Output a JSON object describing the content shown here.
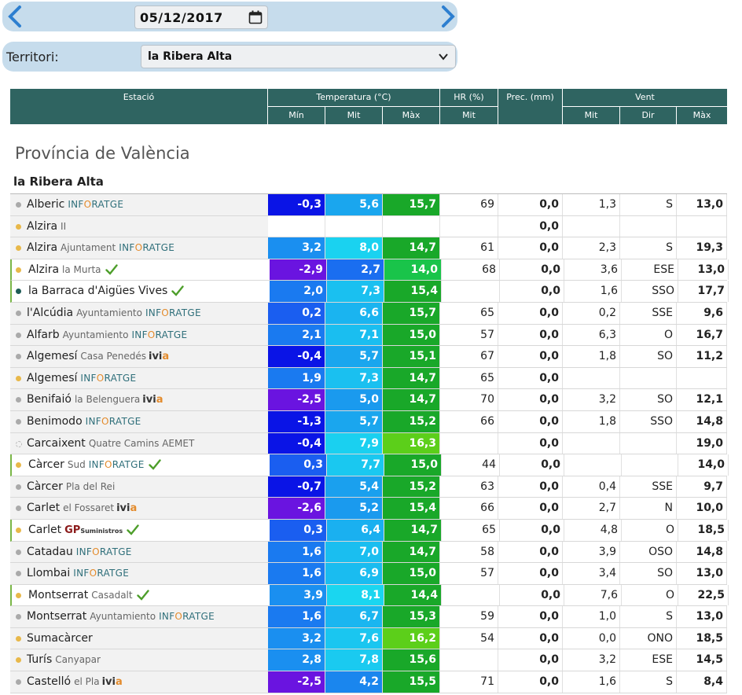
{
  "date": "05/12/2017",
  "territory_label": "Territori:",
  "territory_value": "la Ribera Alta",
  "header": {
    "station": "Estació",
    "temp": "Temperatura (°C)",
    "hr": "HR (%)",
    "prec": "Prec. (mm)",
    "wind": "Vent",
    "min": "Mín",
    "mit": "Mit",
    "max": "Màx",
    "hr_mit": "Mit",
    "w_mit": "Mit",
    "w_dir": "Dir",
    "w_max": "Màx"
  },
  "province": "Província de València",
  "comarca": "la Ribera Alta",
  "colors": {
    "header": "#2f6461",
    "accent": "#7ab648"
  },
  "rows": [
    {
      "name": "Alberic",
      "sub": "",
      "logo": "INFORATGE",
      "check": false,
      "dot": "#aaaaaa",
      "hi": false,
      "min": "-0,3",
      "mit": "5,6",
      "max": "15,7",
      "hr": "69",
      "prec": "0,0",
      "wmit": "1,3",
      "wdir": "S",
      "wmax": "13,0",
      "cmin": "#0a14e6",
      "cmit": "#1aa6ee",
      "cmax": "#19a829"
    },
    {
      "name": "Alzira",
      "sub": "II",
      "logo": "",
      "check": false,
      "dot": "#e8b84a",
      "hi": false,
      "min": "",
      "mit": "",
      "max": "",
      "hr": "",
      "prec": "0,0",
      "wmit": "",
      "wdir": "",
      "wmax": "",
      "cmin": "",
      "cmit": "",
      "cmax": ""
    },
    {
      "name": "Alzira",
      "sub": "Ajuntament",
      "logo": "INFORATGE",
      "check": false,
      "dot": "#e8b84a",
      "hi": false,
      "min": "3,2",
      "mit": "8,0",
      "max": "14,7",
      "hr": "61",
      "prec": "0,0",
      "wmit": "2,3",
      "wdir": "S",
      "wmax": "19,3",
      "cmin": "#1a8ff0",
      "cmit": "#1ad2f0",
      "cmax": "#19a829"
    },
    {
      "name": "Alzira",
      "sub": "la Murta",
      "logo": "",
      "check": true,
      "dot": "#e8b84a",
      "hi": true,
      "min": "-2,9",
      "mit": "2,7",
      "max": "14,0",
      "hr": "68",
      "prec": "0,0",
      "wmit": "3,6",
      "wdir": "ESE",
      "wmax": "13,0",
      "cmin": "#6a14e0",
      "cmit": "#1a6ef0",
      "cmax": "#19c44a"
    },
    {
      "name": "la Barraca d'Aigües Vives",
      "sub": "",
      "logo": "",
      "check": true,
      "dot": "#1e5c56",
      "hi": true,
      "min": "2,0",
      "mit": "7,3",
      "max": "15,4",
      "hr": "",
      "prec": "0,0",
      "wmit": "1,6",
      "wdir": "SSO",
      "wmax": "17,7",
      "cmin": "#1a7af0",
      "cmit": "#1ac0f0",
      "cmax": "#19a829"
    },
    {
      "name": "l'Alcúdia",
      "sub": "Ayuntamiento",
      "logo": "INFORATGE",
      "check": false,
      "dot": "#aaaaaa",
      "hi": false,
      "min": "0,2",
      "mit": "6,6",
      "max": "15,7",
      "hr": "65",
      "prec": "0,0",
      "wmit": "0,2",
      "wdir": "SSE",
      "wmax": "9,6",
      "cmin": "#1a5ef0",
      "cmit": "#1ab4f0",
      "cmax": "#19a829"
    },
    {
      "name": "Alfarb",
      "sub": "Ayuntamiento",
      "logo": "INFORATGE",
      "check": false,
      "dot": "#aaaaaa",
      "hi": false,
      "min": "2,1",
      "mit": "7,1",
      "max": "15,0",
      "hr": "57",
      "prec": "0,0",
      "wmit": "6,3",
      "wdir": "O",
      "wmax": "16,7",
      "cmin": "#1a7af0",
      "cmit": "#1abef0",
      "cmax": "#19a829"
    },
    {
      "name": "Algemesí",
      "sub": "Casa Penedés",
      "logo": "ivia",
      "check": false,
      "dot": "#aaaaaa",
      "hi": false,
      "min": "-0,4",
      "mit": "5,7",
      "max": "15,1",
      "hr": "67",
      "prec": "0,0",
      "wmit": "1,8",
      "wdir": "SO",
      "wmax": "11,2",
      "cmin": "#0a14e6",
      "cmit": "#1aa6ee",
      "cmax": "#19a829"
    },
    {
      "name": "Algemesí",
      "sub": "",
      "logo": "INFORATGE",
      "check": false,
      "dot": "#e8b84a",
      "hi": false,
      "min": "1,9",
      "mit": "7,3",
      "max": "14,7",
      "hr": "65",
      "prec": "0,0",
      "wmit": "",
      "wdir": "",
      "wmax": "",
      "cmin": "#1a7af0",
      "cmit": "#1ac0f0",
      "cmax": "#19a829"
    },
    {
      "name": "Benifaió",
      "sub": "la Belenguera",
      "logo": "ivia",
      "check": false,
      "dot": "#aaaaaa",
      "hi": false,
      "min": "-2,5",
      "mit": "5,0",
      "max": "14,7",
      "hr": "70",
      "prec": "0,0",
      "wmit": "3,2",
      "wdir": "SO",
      "wmax": "12,1",
      "cmin": "#6a14e0",
      "cmit": "#1a9aee",
      "cmax": "#19a829"
    },
    {
      "name": "Benimodo",
      "sub": "",
      "logo": "INFORATGE",
      "check": false,
      "dot": "#aaaaaa",
      "hi": false,
      "min": "-1,3",
      "mit": "5,7",
      "max": "15,2",
      "hr": "66",
      "prec": "0,0",
      "wmit": "1,8",
      "wdir": "SSO",
      "wmax": "14,8",
      "cmin": "#0a14e6",
      "cmit": "#1aa6ee",
      "cmax": "#19a829"
    },
    {
      "name": "Carcaixent",
      "sub": "Quatre Camins AEMET",
      "logo": "",
      "check": false,
      "dot": "none",
      "hi": false,
      "min": "-0,4",
      "mit": "7,9",
      "max": "16,3",
      "hr": "",
      "prec": "0,0",
      "wmit": "",
      "wdir": "",
      "wmax": "19,0",
      "cmin": "#0a14e6",
      "cmit": "#1ad0f0",
      "cmax": "#5ccf1a"
    },
    {
      "name": "Càrcer",
      "sub": "Sud",
      "logo": "INFORATGE",
      "check": true,
      "dot": "#e8b84a",
      "hi": true,
      "min": "0,3",
      "mit": "7,7",
      "max": "15,0",
      "hr": "44",
      "prec": "0,0",
      "wmit": "",
      "wdir": "",
      "wmax": "14,0",
      "cmin": "#1a5ef0",
      "cmit": "#1ac8f0",
      "cmax": "#19a829"
    },
    {
      "name": "Càrcer",
      "sub": "Pla del Rei",
      "logo": "",
      "check": false,
      "dot": "#aaaaaa",
      "hi": false,
      "min": "-0,7",
      "mit": "5,4",
      "max": "15,2",
      "hr": "63",
      "prec": "0,0",
      "wmit": "0,4",
      "wdir": "SSE",
      "wmax": "9,7",
      "cmin": "#0a14e6",
      "cmit": "#1aa0ee",
      "cmax": "#19a829"
    },
    {
      "name": "Carlet",
      "sub": "el Fossaret",
      "logo": "ivia",
      "check": false,
      "dot": "#aaaaaa",
      "hi": false,
      "min": "-2,6",
      "mit": "5,2",
      "max": "15,4",
      "hr": "66",
      "prec": "0,0",
      "wmit": "2,7",
      "wdir": "N",
      "wmax": "10,0",
      "cmin": "#6a14e0",
      "cmit": "#1a9aee",
      "cmax": "#19a829"
    },
    {
      "name": "Carlet",
      "sub": "",
      "logo": "GP",
      "check": true,
      "dot": "#e8b84a",
      "hi": true,
      "min": "0,3",
      "mit": "6,4",
      "max": "14,7",
      "hr": "65",
      "prec": "0,0",
      "wmit": "4,8",
      "wdir": "O",
      "wmax": "18,5",
      "cmin": "#1a5ef0",
      "cmit": "#1ab0f0",
      "cmax": "#19a829"
    },
    {
      "name": "Catadau",
      "sub": "",
      "logo": "INFORATGE",
      "check": false,
      "dot": "#aaaaaa",
      "hi": false,
      "min": "1,6",
      "mit": "7,0",
      "max": "14,7",
      "hr": "58",
      "prec": "0,0",
      "wmit": "3,9",
      "wdir": "OSO",
      "wmax": "14,8",
      "cmin": "#1a7af0",
      "cmit": "#1abef0",
      "cmax": "#19a829"
    },
    {
      "name": "Llombai",
      "sub": "",
      "logo": "INFORATGE",
      "check": false,
      "dot": "#aaaaaa",
      "hi": false,
      "min": "1,6",
      "mit": "6,9",
      "max": "15,0",
      "hr": "57",
      "prec": "0,0",
      "wmit": "3,4",
      "wdir": "SO",
      "wmax": "13,0",
      "cmin": "#1a7af0",
      "cmit": "#1abcf0",
      "cmax": "#19a829"
    },
    {
      "name": "Montserrat",
      "sub": "Casadalt",
      "logo": "",
      "check": true,
      "dot": "#e8b84a",
      "hi": true,
      "min": "3,9",
      "mit": "8,1",
      "max": "14,4",
      "hr": "",
      "prec": "0,0",
      "wmit": "7,6",
      "wdir": "O",
      "wmax": "22,5",
      "cmin": "#1a8ff0",
      "cmit": "#1ad6f0",
      "cmax": "#19a829"
    },
    {
      "name": "Montserrat",
      "sub": "Ayuntamiento",
      "logo": "INFORATGE",
      "check": false,
      "dot": "#aaaaaa",
      "hi": false,
      "min": "1,6",
      "mit": "6,7",
      "max": "15,3",
      "hr": "59",
      "prec": "0,0",
      "wmit": "1,0",
      "wdir": "S",
      "wmax": "13,0",
      "cmin": "#1a7af0",
      "cmit": "#1ab6f0",
      "cmax": "#19a829"
    },
    {
      "name": "Sumacàrcer",
      "sub": "",
      "logo": "",
      "check": false,
      "dot": "#e8b84a",
      "hi": false,
      "min": "3,2",
      "mit": "7,6",
      "max": "16,2",
      "hr": "54",
      "prec": "0,0",
      "wmit": "0,0",
      "wdir": "ONO",
      "wmax": "18,5",
      "cmin": "#1a8ff0",
      "cmit": "#1ac6f0",
      "cmax": "#5ccf1a"
    },
    {
      "name": "Turís",
      "sub": "Canyapar",
      "logo": "",
      "check": false,
      "dot": "#e8b84a",
      "hi": false,
      "min": "2,8",
      "mit": "7,8",
      "max": "15,6",
      "hr": "",
      "prec": "0,0",
      "wmit": "3,2",
      "wdir": "ESE",
      "wmax": "14,5",
      "cmin": "#1a8ff0",
      "cmit": "#1acaf0",
      "cmax": "#19a829"
    },
    {
      "name": "Castelló",
      "sub": "el Pla",
      "logo": "ivia",
      "check": false,
      "dot": "#aaaaaa",
      "hi": false,
      "min": "-2,5",
      "mit": "4,2",
      "max": "15,5",
      "hr": "71",
      "prec": "0,0",
      "wmit": "1,6",
      "wdir": "S",
      "wmax": "8,4",
      "cmin": "#6a14e0",
      "cmit": "#1a86ee",
      "cmax": "#19a829"
    }
  ]
}
